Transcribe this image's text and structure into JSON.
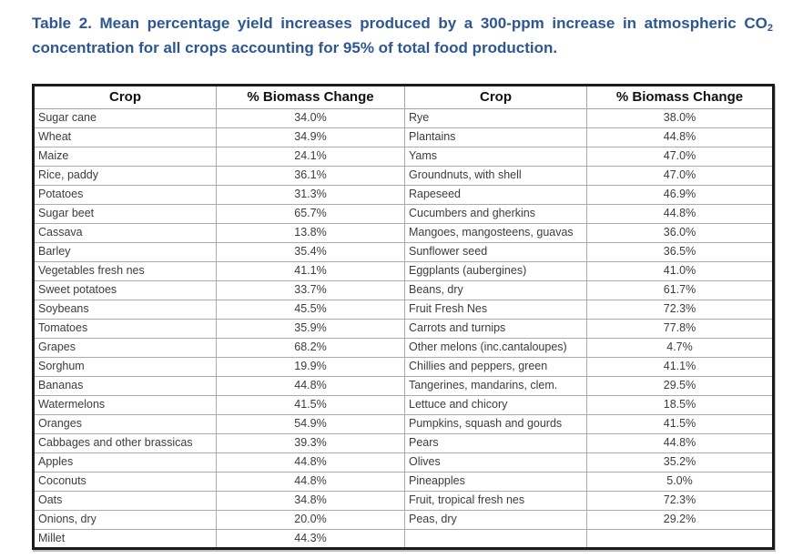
{
  "caption": {
    "part1": "Table 2. Mean percentage yield increases produced by a 300-ppm increase in atmospheric CO",
    "sub": "2",
    "part2": " concentration for all crops accounting for 95% of total food production.",
    "color": "#2B579A"
  },
  "table": {
    "headers": [
      "Crop",
      "% Biomass Change",
      "Crop",
      "% Biomass Change"
    ],
    "rows": [
      [
        "Sugar cane",
        "34.0%",
        "Rye",
        "38.0%"
      ],
      [
        "Wheat",
        "34.9%",
        "Plantains",
        "44.8%"
      ],
      [
        "Maize",
        "24.1%",
        "Yams",
        "47.0%"
      ],
      [
        "Rice, paddy",
        "36.1%",
        "Groundnuts, with shell",
        "47.0%"
      ],
      [
        "Potatoes",
        "31.3%",
        "Rapeseed",
        "46.9%"
      ],
      [
        "Sugar beet",
        "65.7%",
        "Cucumbers and gherkins",
        "44.8%"
      ],
      [
        "Cassava",
        "13.8%",
        "Mangoes, mangosteens, guavas",
        "36.0%"
      ],
      [
        "Barley",
        "35.4%",
        "Sunflower seed",
        "36.5%"
      ],
      [
        "Vegetables fresh nes",
        "41.1%",
        "Eggplants (aubergines)",
        "41.0%"
      ],
      [
        "Sweet potatoes",
        "33.7%",
        "Beans, dry",
        "61.7%"
      ],
      [
        "Soybeans",
        "45.5%",
        "Fruit Fresh Nes",
        "72.3%"
      ],
      [
        "Tomatoes",
        "35.9%",
        "Carrots and turnips",
        "77.8%"
      ],
      [
        "Grapes",
        "68.2%",
        "Other melons (inc.cantaloupes)",
        "4.7%"
      ],
      [
        "Sorghum",
        "19.9%",
        "Chillies and peppers, green",
        "41.1%"
      ],
      [
        "Bananas",
        "44.8%",
        "Tangerines, mandarins, clem.",
        "29.5%"
      ],
      [
        "Watermelons",
        "41.5%",
        "Lettuce and chicory",
        "18.5%"
      ],
      [
        "Oranges",
        "54.9%",
        "Pumpkins, squash and gourds",
        "41.5%"
      ],
      [
        "Cabbages and other brassicas",
        "39.3%",
        "Pears",
        "44.8%"
      ],
      [
        "Apples",
        "44.8%",
        "Olives",
        "35.2%"
      ],
      [
        "Coconuts",
        "44.8%",
        "Pineapples",
        "5.0%"
      ],
      [
        "Oats",
        "34.8%",
        "Fruit, tropical fresh nes",
        "72.3%"
      ],
      [
        "Onions, dry",
        "20.0%",
        "Peas, dry",
        "29.2%"
      ],
      [
        "Millet",
        "44.3%",
        "",
        ""
      ]
    ]
  }
}
